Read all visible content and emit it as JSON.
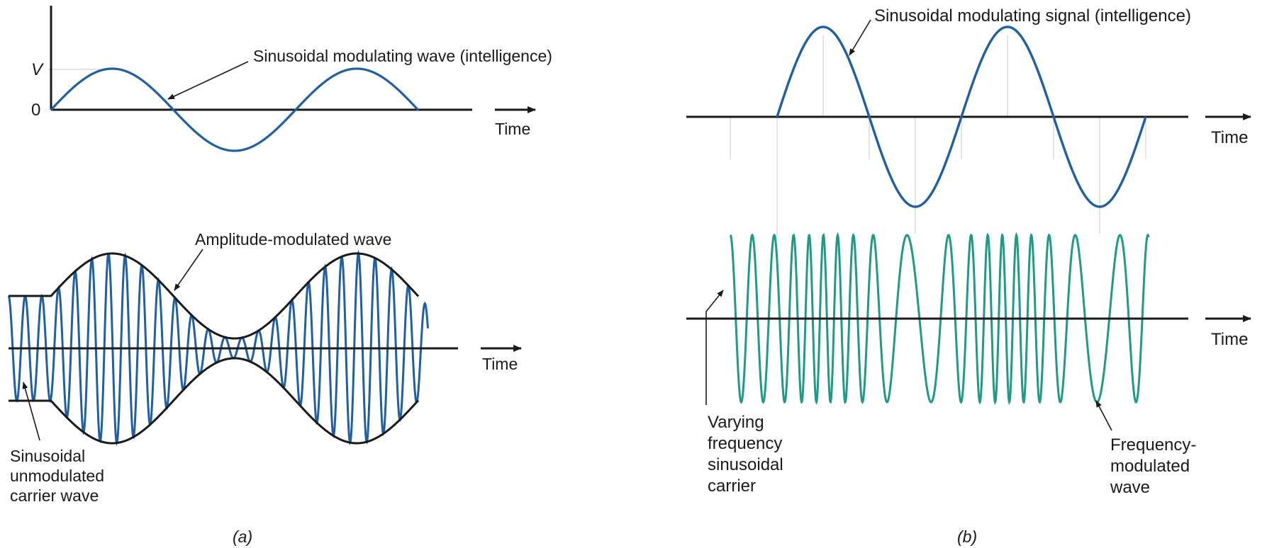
{
  "colors": {
    "modulating": "#1f5fa3",
    "carrier_am": "#1f5fa3",
    "carrier_fm": "#1e9a86",
    "axis": "#1a1a1a"
  },
  "panel_a": {
    "caption": "(a)",
    "top": {
      "y_tick_v": "V",
      "y_tick_zero": "0",
      "time_label": "Time",
      "wave_label": "Sinusoidal modulating wave (intelligence)"
    },
    "bottom": {
      "time_label": "Time",
      "am_label": "Amplitude-modulated wave",
      "carrier_label_lines": [
        "Sinusoidal",
        "unmodulated",
        "carrier wave"
      ]
    }
  },
  "panel_b": {
    "caption": "(b)",
    "top": {
      "time_label": "Time",
      "wave_label": "Sinusoidal modulating signal (intelligence)"
    },
    "bottom": {
      "time_label": "Time",
      "carrier_label_lines": [
        "Varying",
        "frequency",
        "sinusoidal",
        "carrier"
      ],
      "fm_label_lines": [
        "Frequency-",
        "modulated",
        "wave"
      ]
    }
  }
}
